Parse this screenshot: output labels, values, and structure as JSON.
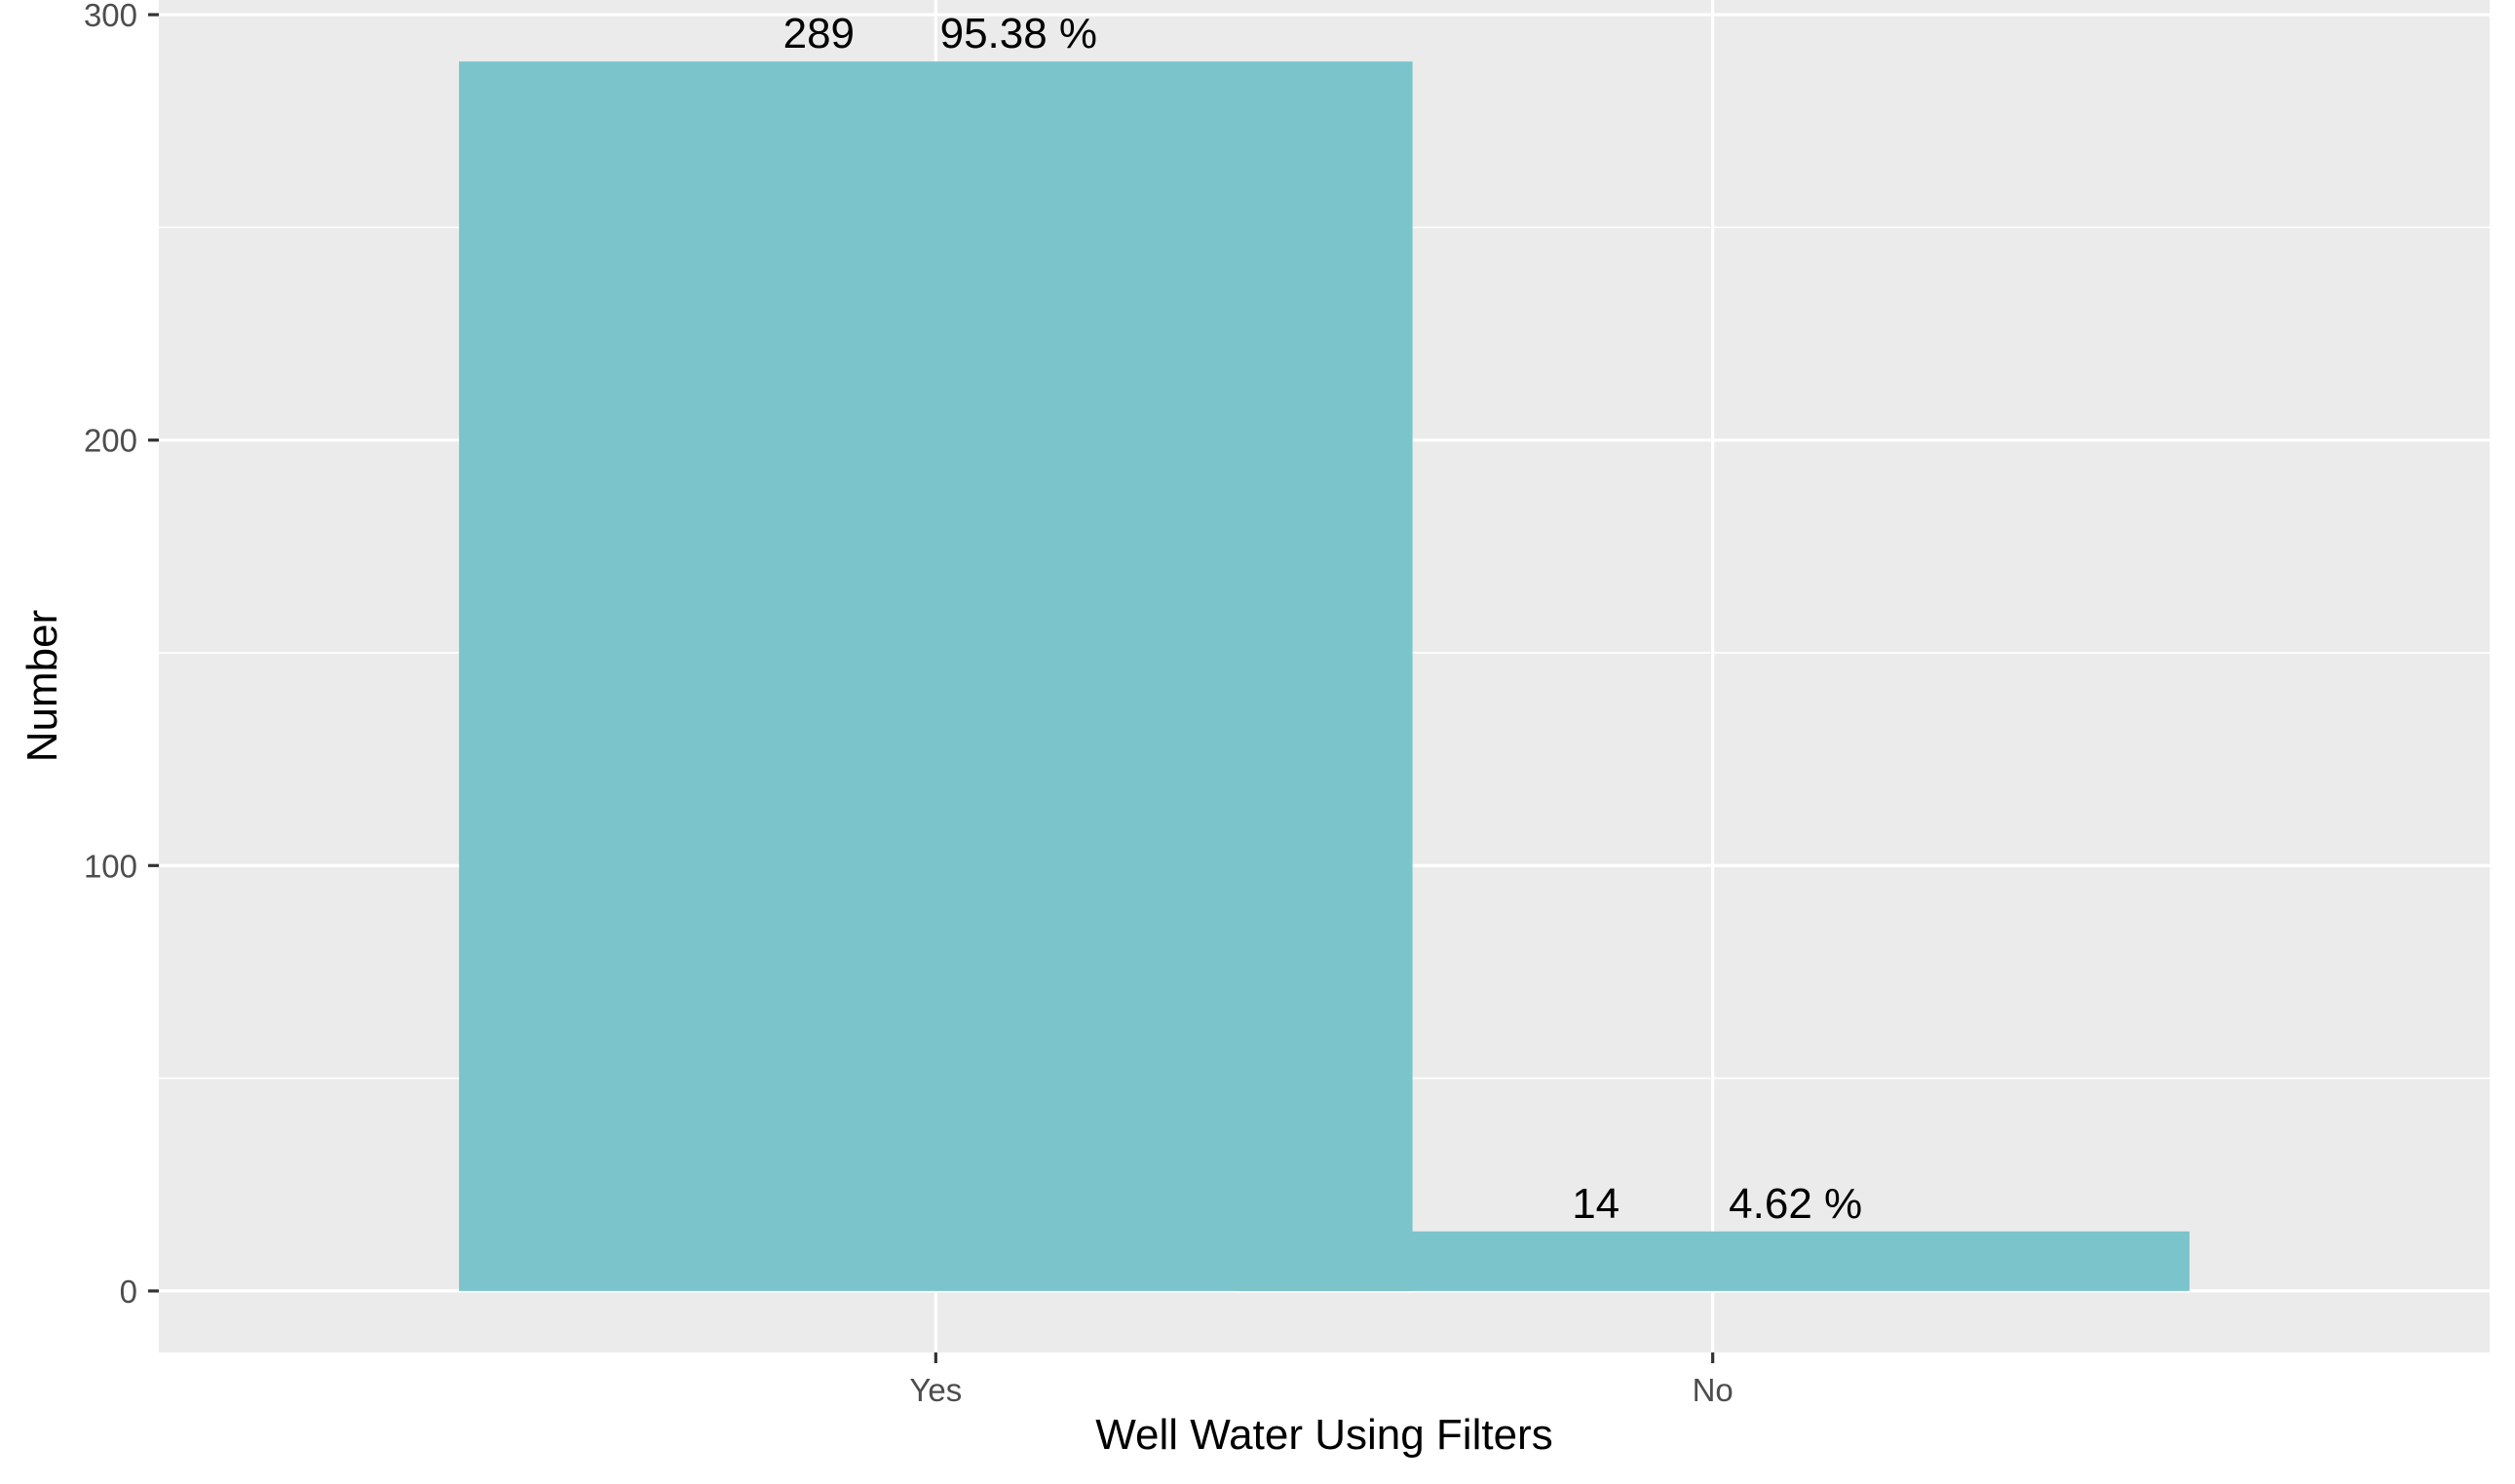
{
  "chart_data": {
    "type": "bar",
    "categories": [
      "Yes",
      "No"
    ],
    "values": [
      289,
      14
    ],
    "percent_labels": [
      "95.38 %",
      "4.62 %"
    ],
    "title": "",
    "xlabel": "Well Water Using Filters",
    "ylabel": "Number",
    "ylim": [
      -14.45,
      303.45
    ],
    "yticks": [
      0,
      100,
      200,
      300
    ],
    "ytick_labels": [
      "0",
      "100",
      "200",
      "300"
    ],
    "grid": true,
    "legend": "none",
    "colors": {
      "bar": "#7CC4CC",
      "panel": "#EBEBEB",
      "grid": "#FFFFFF",
      "text": "#000000",
      "tick_text": "#4D4D4D"
    }
  }
}
